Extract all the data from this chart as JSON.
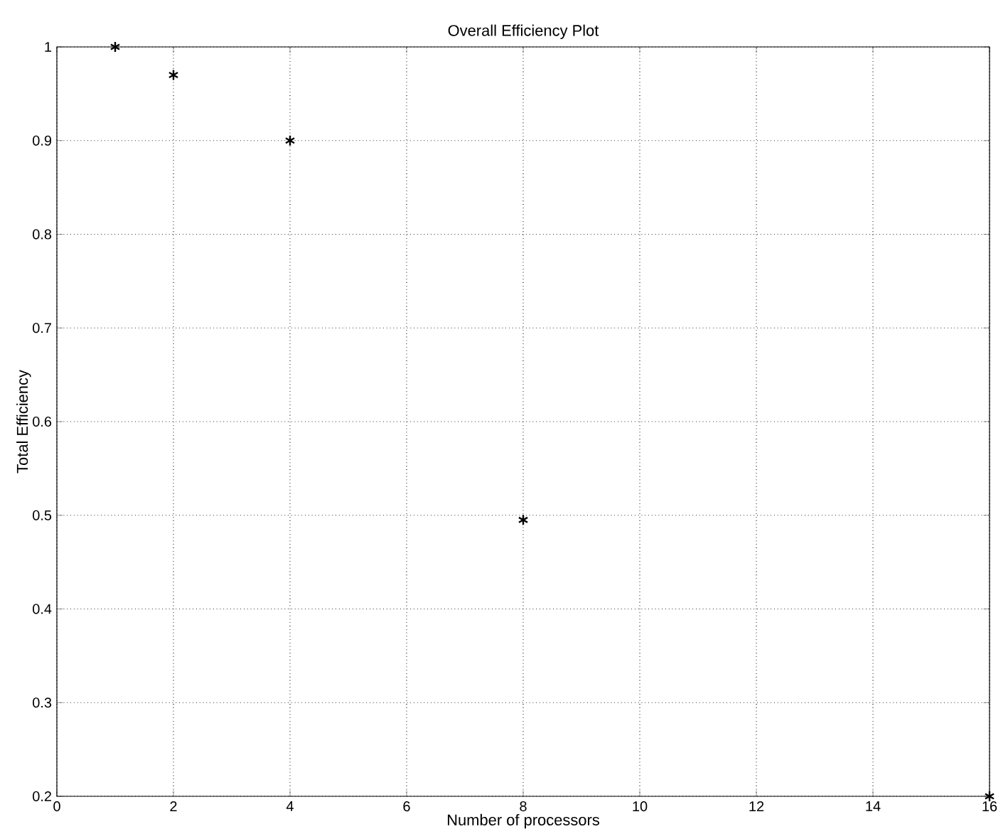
{
  "chart_data": {
    "type": "scatter",
    "title": "Overall Efficiency Plot",
    "xlabel": "Number of processors",
    "ylabel": "Total Efficiency",
    "x": [
      1,
      2,
      4,
      8,
      16
    ],
    "values": [
      1.0,
      0.97,
      0.9,
      0.495,
      0.2
    ],
    "color": "#000000",
    "marker": "cross",
    "grid": true,
    "xlim": [
      0,
      16
    ],
    "xticks": [
      0,
      2,
      4,
      6,
      8,
      10,
      12,
      14,
      16
    ],
    "ylim": [
      0.2,
      1
    ],
    "yticks": [
      0.2,
      0.3,
      0.4,
      0.5,
      0.6,
      0.7,
      0.8,
      0.9,
      1
    ]
  }
}
